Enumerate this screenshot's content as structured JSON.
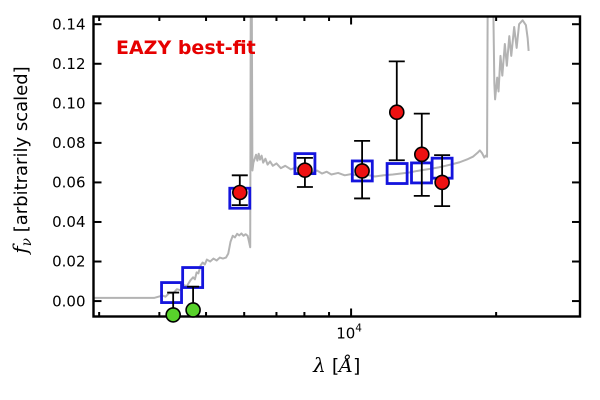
{
  "figure": {
    "background": "#ffffff"
  },
  "chart_data": {
    "type": "line",
    "title": "EAZY best-fit",
    "x_scale": "log",
    "xlabel": "λ [Å]",
    "ylabel": "fν [arbitrarily scaled]",
    "xlabel_parts": {
      "symbol": "λ",
      "open": " [",
      "unit": "Å",
      "close": "]"
    },
    "ylabel_parts": {
      "symbol": "f",
      "subscript": "ν",
      "rest": " [arbitrarily scaled]"
    },
    "xlim": [
      2920,
      29860
    ],
    "ylim": [
      -0.0078,
      0.1439
    ],
    "x_ticks": {
      "major": [
        {
          "value": 10000,
          "label_base": "10",
          "label_exp": "4"
        }
      ],
      "minor": [
        3000,
        4000,
        5000,
        6000,
        7000,
        8000,
        9000,
        20000
      ]
    },
    "y_ticks": [
      {
        "value": 0.0,
        "label": "0.00"
      },
      {
        "value": 0.02,
        "label": "0.02"
      },
      {
        "value": 0.04,
        "label": "0.04"
      },
      {
        "value": 0.06,
        "label": "0.06"
      },
      {
        "value": 0.08,
        "label": "0.08"
      },
      {
        "value": 0.1,
        "label": "0.10"
      },
      {
        "value": 0.12,
        "label": "0.12"
      },
      {
        "value": 0.14,
        "label": "0.14"
      }
    ],
    "annotation": {
      "text": "EAZY best-fit",
      "color": "#e60000"
    },
    "series": [
      {
        "name": "best-fit-template-spectrum",
        "type": "line",
        "color": "#b3b3b3",
        "points": [
          [
            2920,
            0.0016
          ],
          [
            3400,
            0.0016
          ],
          [
            3900,
            0.0016
          ],
          [
            4060,
            0.0028
          ],
          [
            4120,
            0.0022
          ],
          [
            4200,
            0.0042
          ],
          [
            4270,
            0.0038
          ],
          [
            4350,
            0.006
          ],
          [
            4420,
            0.0055
          ],
          [
            4500,
            0.008
          ],
          [
            4560,
            0.0075
          ],
          [
            4640,
            0.0105
          ],
          [
            4700,
            0.012
          ],
          [
            4740,
            0.011
          ],
          [
            4780,
            0.0145
          ],
          [
            4820,
            0.014
          ],
          [
            4870,
            0.018
          ],
          [
            4920,
            0.0195
          ],
          [
            4970,
            0.0185
          ],
          [
            5020,
            0.021
          ],
          [
            5100,
            0.02
          ],
          [
            5180,
            0.0215
          ],
          [
            5260,
            0.0205
          ],
          [
            5340,
            0.022
          ],
          [
            5420,
            0.0215
          ],
          [
            5500,
            0.022
          ],
          [
            5560,
            0.024
          ],
          [
            5620,
            0.03
          ],
          [
            5680,
            0.033
          ],
          [
            5740,
            0.0322
          ],
          [
            5800,
            0.034
          ],
          [
            5860,
            0.0332
          ],
          [
            5920,
            0.0342
          ],
          [
            5980,
            0.033
          ],
          [
            6040,
            0.0338
          ],
          [
            6100,
            0.033
          ],
          [
            6140,
            0.03
          ],
          [
            6175,
            0.0272
          ],
          [
            6195,
            0.18
          ],
          [
            6215,
            0.18
          ],
          [
            6240,
            0.066
          ],
          [
            6270,
            0.07
          ],
          [
            6310,
            0.072
          ],
          [
            6350,
            0.074
          ],
          [
            6390,
            0.071
          ],
          [
            6430,
            0.0745
          ],
          [
            6470,
            0.0715
          ],
          [
            6520,
            0.0735
          ],
          [
            6570,
            0.07
          ],
          [
            6640,
            0.072
          ],
          [
            6710,
            0.069
          ],
          [
            6790,
            0.0706
          ],
          [
            6880,
            0.0684
          ],
          [
            7000,
            0.0696
          ],
          [
            7150,
            0.0672
          ],
          [
            7300,
            0.0684
          ],
          [
            7500,
            0.0666
          ],
          [
            7700,
            0.0676
          ],
          [
            7900,
            0.066
          ],
          [
            8100,
            0.0668
          ],
          [
            8300,
            0.0652
          ],
          [
            8500,
            0.066
          ],
          [
            8700,
            0.0645
          ],
          [
            8900,
            0.0654
          ],
          [
            9100,
            0.064
          ],
          [
            9400,
            0.0648
          ],
          [
            9700,
            0.0636
          ],
          [
            10000,
            0.0642
          ],
          [
            10400,
            0.0632
          ],
          [
            10800,
            0.0638
          ],
          [
            11200,
            0.063
          ],
          [
            11700,
            0.0636
          ],
          [
            12200,
            0.064
          ],
          [
            12700,
            0.0645
          ],
          [
            13200,
            0.065
          ],
          [
            13700,
            0.0658
          ],
          [
            14200,
            0.0664
          ],
          [
            14700,
            0.067
          ],
          [
            15200,
            0.0676
          ],
          [
            15700,
            0.0684
          ],
          [
            16200,
            0.0692
          ],
          [
            16800,
            0.0702
          ],
          [
            17400,
            0.0716
          ],
          [
            17900,
            0.073
          ],
          [
            18300,
            0.075
          ],
          [
            18500,
            0.0762
          ],
          [
            18700,
            0.0748
          ],
          [
            18900,
            0.0726
          ],
          [
            19050,
            0.0736
          ],
          [
            19150,
            0.073
          ],
          [
            19230,
            0.18
          ],
          [
            19650,
            0.18
          ],
          [
            19830,
            0.11
          ],
          [
            19900,
            0.102
          ],
          [
            20100,
            0.113
          ],
          [
            20230,
            0.106
          ],
          [
            20420,
            0.124
          ],
          [
            20600,
            0.114
          ],
          [
            20850,
            0.13
          ],
          [
            21050,
            0.119
          ],
          [
            21300,
            0.134
          ],
          [
            21500,
            0.124
          ],
          [
            21800,
            0.1386
          ],
          [
            22060,
            0.128
          ],
          [
            22320,
            0.14
          ],
          [
            22700,
            0.142
          ],
          [
            23060,
            0.1395
          ],
          [
            23250,
            0.133
          ],
          [
            23360,
            0.1265
          ]
        ]
      },
      {
        "name": "template-photometry",
        "type": "scatter",
        "marker": "open-square",
        "color": "#1414dd",
        "points": [
          [
            4240,
            0.0043
          ],
          [
            4690,
            0.0119
          ],
          [
            5875,
            0.052
          ],
          [
            8020,
            0.0695
          ],
          [
            10550,
            0.0658
          ],
          [
            12460,
            0.0645
          ],
          [
            14000,
            0.0648
          ],
          [
            15450,
            0.0672
          ]
        ]
      },
      {
        "name": "observed-photometry",
        "type": "scatter",
        "marker": "circle",
        "color": "#ee1111",
        "error_color": "#000000",
        "points": [
          {
            "x": 5875,
            "y": 0.0549,
            "y_hi": 0.0636,
            "y_lo": 0.0485
          },
          {
            "x": 8020,
            "y": 0.0662,
            "y_hi": 0.0724,
            "y_lo": 0.0577
          },
          {
            "x": 10540,
            "y": 0.0658,
            "y_hi": 0.081,
            "y_lo": 0.0519
          },
          {
            "x": 12440,
            "y": 0.0955,
            "y_hi": 0.1212,
            "y_lo": 0.0712
          },
          {
            "x": 14020,
            "y": 0.0742,
            "y_hi": 0.0948,
            "y_lo": 0.0532
          },
          {
            "x": 15450,
            "y": 0.06,
            "y_hi": 0.0738,
            "y_lo": 0.048
          }
        ]
      },
      {
        "name": "observed-photometry-negative",
        "type": "scatter",
        "marker": "circle",
        "color": "#58d22b",
        "error_color": "#000000",
        "points": [
          {
            "x": 4273,
            "y": -0.007,
            "y_hi": 0.0043
          },
          {
            "x": 4700,
            "y": -0.0045,
            "y_hi": 0.0073
          }
        ]
      }
    ]
  }
}
